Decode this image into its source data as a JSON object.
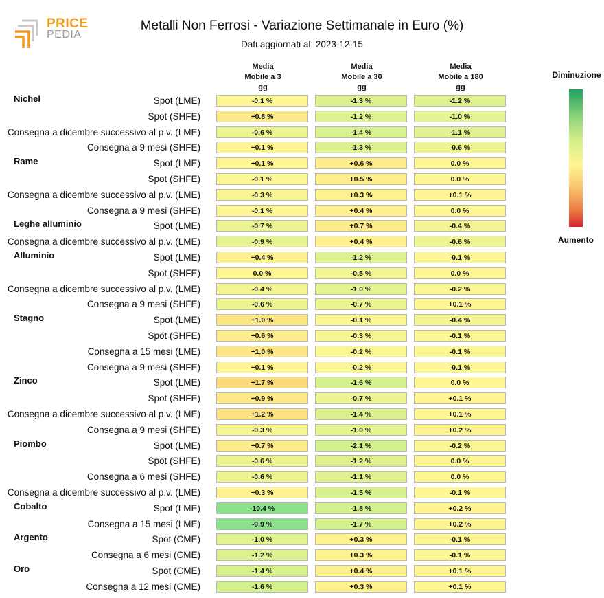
{
  "logo": {
    "word1": "PRICE",
    "word2": "PEDIA"
  },
  "title": "Metalli Non Ferrosi - Variazione Settimanale in Euro (%)",
  "subtitle": "Dati aggiornati al: 2023-12-15",
  "legend": {
    "top": "Diminuzione",
    "bottom": "Aumento",
    "gradient_colors": [
      "#1fa060",
      "#8fd37a",
      "#d6ef88",
      "#fff592",
      "#f8c36c",
      "#ec7a43",
      "#d6242f"
    ]
  },
  "chart_data": {
    "type": "table",
    "title": "Metalli Non Ferrosi - Variazione Settimanale in Euro (%)",
    "columns": [
      "Media\nMobile a 3\ngg",
      "Media\nMobile a 30\ngg",
      "Media\nMobile a 180\ngg"
    ],
    "rows": [
      {
        "group": "Nichel",
        "label": "Spot (LME)",
        "values": [
          "-0.1 %",
          "-1.3 %",
          "-1.2 %"
        ]
      },
      {
        "group": "",
        "label": "Spot (SHFE)",
        "values": [
          "+0.8 %",
          "-1.2 %",
          "-1.0 %"
        ]
      },
      {
        "group": "",
        "label": "Consegna a dicembre successivo al p.v. (LME)",
        "values": [
          "-0.6 %",
          "-1.4 %",
          "-1.1 %"
        ]
      },
      {
        "group": "",
        "label": "Consegna a 9 mesi (SHFE)",
        "values": [
          "+0.1 %",
          "-1.3 %",
          "-0.6 %"
        ]
      },
      {
        "group": "Rame",
        "label": "Spot (LME)",
        "values": [
          "+0.1 %",
          "+0.6 %",
          "0.0 %"
        ]
      },
      {
        "group": "",
        "label": "Spot (SHFE)",
        "values": [
          "-0.1 %",
          "+0.5 %",
          "0.0 %"
        ]
      },
      {
        "group": "",
        "label": "Consegna a dicembre successivo al p.v. (LME)",
        "values": [
          "-0.3 %",
          "+0.3 %",
          "+0.1 %"
        ]
      },
      {
        "group": "",
        "label": "Consegna a 9 mesi (SHFE)",
        "values": [
          "-0.1 %",
          "+0.4 %",
          "0.0 %"
        ]
      },
      {
        "group": "Leghe alluminio",
        "label": "Spot (LME)",
        "values": [
          "-0.7 %",
          "+0.7 %",
          "-0.4 %"
        ]
      },
      {
        "group": "",
        "label": "Consegna a dicembre successivo al p.v. (LME)",
        "values": [
          "-0.9 %",
          "+0.4 %",
          "-0.6 %"
        ]
      },
      {
        "group": "Alluminio",
        "label": "Spot (LME)",
        "values": [
          "+0.4 %",
          "-1.2 %",
          "-0.1 %"
        ]
      },
      {
        "group": "",
        "label": "Spot (SHFE)",
        "values": [
          "0.0 %",
          "-0.5 %",
          "0.0 %"
        ]
      },
      {
        "group": "",
        "label": "Consegna a dicembre successivo al p.v. (LME)",
        "values": [
          "-0.4 %",
          "-1.0 %",
          "-0.2 %"
        ]
      },
      {
        "group": "",
        "label": "Consegna a 9 mesi (SHFE)",
        "values": [
          "-0.6 %",
          "-0.7 %",
          "+0.1 %"
        ]
      },
      {
        "group": "Stagno",
        "label": "Spot (LME)",
        "values": [
          "+1.0 %",
          "-0.1 %",
          "-0.4 %"
        ]
      },
      {
        "group": "",
        "label": "Spot (SHFE)",
        "values": [
          "+0.6 %",
          "-0.3 %",
          "-0.1 %"
        ]
      },
      {
        "group": "",
        "label": "Consegna a 15 mesi (LME)",
        "values": [
          "+1.0 %",
          "-0.2 %",
          "-0.1 %"
        ]
      },
      {
        "group": "",
        "label": "Consegna a 9 mesi (SHFE)",
        "values": [
          "+0.1 %",
          "-0.2 %",
          "-0.1 %"
        ]
      },
      {
        "group": "Zinco",
        "label": "Spot (LME)",
        "values": [
          "+1.7 %",
          "-1.6 %",
          "0.0 %"
        ]
      },
      {
        "group": "",
        "label": "Spot (SHFE)",
        "values": [
          "+0.9 %",
          "-0.7 %",
          "+0.1 %"
        ]
      },
      {
        "group": "",
        "label": "Consegna a dicembre successivo al p.v. (LME)",
        "values": [
          "+1.2 %",
          "-1.4 %",
          "+0.1 %"
        ]
      },
      {
        "group": "",
        "label": "Consegna a 9 mesi (SHFE)",
        "values": [
          "-0.3 %",
          "-1.0 %",
          "+0.2 %"
        ]
      },
      {
        "group": "Piombo",
        "label": "Spot (LME)",
        "values": [
          "+0.7 %",
          "-2.1 %",
          "-0.2 %"
        ]
      },
      {
        "group": "",
        "label": "Spot (SHFE)",
        "values": [
          "-0.6 %",
          "-1.2 %",
          "0.0 %"
        ]
      },
      {
        "group": "",
        "label": "Consegna a 6 mesi (SHFE)",
        "values": [
          "-0.6 %",
          "-1.1 %",
          "0.0 %"
        ]
      },
      {
        "group": "",
        "label": "Consegna a dicembre successivo al p.v. (LME)",
        "values": [
          "+0.3 %",
          "-1.5 %",
          "-0.1 %"
        ]
      },
      {
        "group": "Cobalto",
        "label": "Spot (LME)",
        "values": [
          "-10.4 %",
          "-1.8 %",
          "+0.2 %"
        ]
      },
      {
        "group": "",
        "label": "Consegna a 15 mesi (LME)",
        "values": [
          "-9.9 %",
          "-1.7 %",
          "+0.2 %"
        ]
      },
      {
        "group": "Argento",
        "label": "Spot (CME)",
        "values": [
          "-1.0 %",
          "+0.3 %",
          "-0.1 %"
        ]
      },
      {
        "group": "",
        "label": "Consegna a 6 mesi (CME)",
        "values": [
          "-1.2 %",
          "+0.3 %",
          "-0.1 %"
        ]
      },
      {
        "group": "Oro",
        "label": "Spot (CME)",
        "values": [
          "-1.4 %",
          "+0.4 %",
          "+0.1 %"
        ]
      },
      {
        "group": "",
        "label": "Consegna a 12 mesi (CME)",
        "values": [
          "-1.6 %",
          "+0.3 %",
          "+0.1 %"
        ]
      }
    ]
  }
}
